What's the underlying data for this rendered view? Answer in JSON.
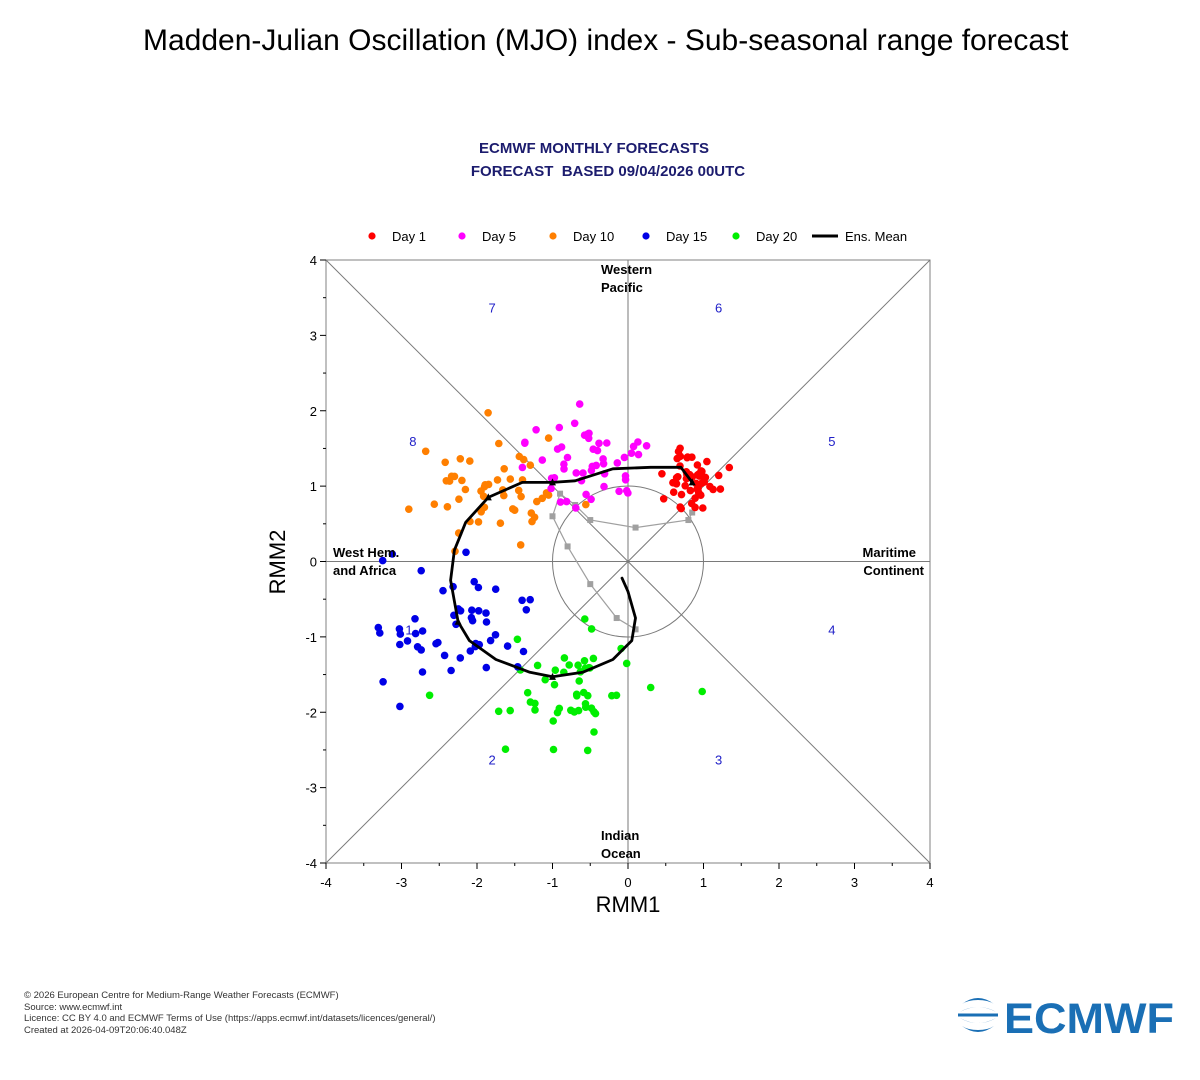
{
  "page": {
    "title": "Madden-Julian Oscillation (MJO) index - Sub-seasonal range forecast"
  },
  "chart_data": {
    "type": "scatter",
    "title": "ECMWF MONTHLY FORECASTS",
    "subtitle": "FORECAST  BASED 09/04/2026 00UTC",
    "xlabel": "RMM1",
    "ylabel": "RMM2",
    "xlim": [
      -4,
      4
    ],
    "ylim": [
      -4,
      4
    ],
    "x_ticks": [
      "-4",
      "-3",
      "-2",
      "-1",
      "0",
      "1",
      "2",
      "3",
      "4"
    ],
    "y_ticks": [
      "-4",
      "-3",
      "-2",
      "-1",
      "0",
      "1",
      "2",
      "3",
      "4"
    ],
    "legend": [
      {
        "label": "Day 1",
        "color": "#ff0000",
        "kind": "dot"
      },
      {
        "label": "Day 5",
        "color": "#ff00ff",
        "kind": "dot"
      },
      {
        "label": "Day 10",
        "color": "#ff7f00",
        "kind": "dot"
      },
      {
        "label": "Day 15",
        "color": "#0000e6",
        "kind": "dot"
      },
      {
        "label": "Day 20",
        "color": "#00ee00",
        "kind": "dot"
      },
      {
        "label": "Ens. Mean",
        "color": "#000000",
        "kind": "line"
      }
    ],
    "region_labels": {
      "top": [
        "Western",
        "Pacific"
      ],
      "bottom": [
        "Indian",
        "Ocean"
      ],
      "left": [
        "West Hem.",
        "and Africa"
      ],
      "right": [
        "Maritime",
        "Continent"
      ]
    },
    "phase_labels": [
      {
        "text": "1",
        "x": -2.9,
        "y": -0.9
      },
      {
        "text": "2",
        "x": -1.8,
        "y": -2.63
      },
      {
        "text": "3",
        "x": 1.2,
        "y": -2.63
      },
      {
        "text": "4",
        "x": 2.7,
        "y": -0.9
      },
      {
        "text": "5",
        "x": 2.7,
        "y": 1.6
      },
      {
        "text": "6",
        "x": 1.2,
        "y": 3.37
      },
      {
        "text": "7",
        "x": -1.8,
        "y": 3.37
      },
      {
        "text": "8",
        "x": -2.85,
        "y": 1.6
      }
    ],
    "unit_circle_radius": 1,
    "ensemble_mean": {
      "x": [
        0.85,
        0.7,
        0.3,
        -0.2,
        -0.7,
        -1.0,
        -1.4,
        -1.85,
        -2.15,
        -2.3,
        -2.35,
        -2.25,
        -2.1,
        -1.75,
        -1.3,
        -1.0,
        -0.6,
        -0.2,
        0.05,
        0.1,
        0.0,
        -0.08
      ],
      "y": [
        1.05,
        1.25,
        1.25,
        1.23,
        1.07,
        1.05,
        1.05,
        0.85,
        0.52,
        0.15,
        -0.25,
        -0.8,
        -1.05,
        -1.3,
        -1.47,
        -1.53,
        -1.47,
        -1.3,
        -1.05,
        -0.75,
        -0.4,
        -0.22
      ],
      "markers": [
        {
          "day": 1,
          "x": 0.85,
          "y": 1.05
        },
        {
          "day": 5,
          "x": -1.0,
          "y": 1.05
        },
        {
          "day": 10,
          "x": -1.85,
          "y": 0.85
        },
        {
          "day": 15,
          "x": -2.25,
          "y": -0.8
        },
        {
          "day": 20,
          "x": -1.0,
          "y": -1.53
        }
      ]
    },
    "observed_path": {
      "color": "#a0a0a0",
      "x": [
        0.85,
        0.8,
        0.1,
        -0.5,
        -0.7,
        -0.9,
        -1.0,
        -0.8,
        -0.5,
        -0.15,
        0.1
      ],
      "y": [
        0.65,
        0.55,
        0.45,
        0.55,
        0.75,
        0.9,
        0.6,
        0.2,
        -0.3,
        -0.75,
        -0.9
      ]
    },
    "series": [
      {
        "name": "Day 1",
        "color": "#ff0000",
        "center": [
          0.85,
          1.05
        ],
        "spread": [
          0.22,
          0.18
        ],
        "n": 51
      },
      {
        "name": "Day 5",
        "color": "#ff00ff",
        "center": [
          -0.55,
          1.25
        ],
        "spread": [
          0.45,
          0.3
        ],
        "n": 51
      },
      {
        "name": "Day 10",
        "color": "#ff7f00",
        "center": [
          -1.8,
          0.9
        ],
        "spread": [
          0.48,
          0.38
        ],
        "n": 51
      },
      {
        "name": "Day 15",
        "color": "#0000e6",
        "center": [
          -2.35,
          -0.9
        ],
        "spread": [
          0.5,
          0.42
        ],
        "n": 51
      },
      {
        "name": "Day 20",
        "color": "#00ee00",
        "center": [
          -0.75,
          -1.65
        ],
        "spread": [
          0.5,
          0.35
        ],
        "n": 51
      }
    ]
  },
  "footer": {
    "line1": "© 2026 European Centre for Medium-Range Weather Forecasts (ECMWF)",
    "line2": "Source: www.ecmwf.int",
    "line3": "Licence: CC BY 4.0 and ECMWF Terms of Use (https://apps.ecmwf.int/datasets/licences/general/)",
    "line4": "Created at 2026-04-09T20:06:40.048Z"
  },
  "logo": {
    "text": "ECMWF",
    "color": "#1a6fb5"
  }
}
